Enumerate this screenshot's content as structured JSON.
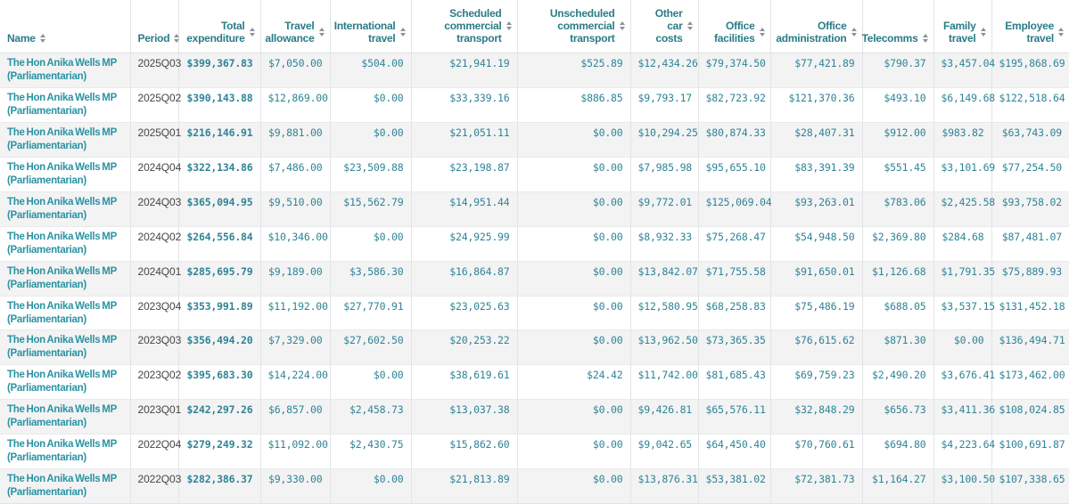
{
  "colors": {
    "header_text": "#2a7c87",
    "name_link_text": "#2a93a3",
    "amount_text": "#2f8496",
    "period_text": "#454545",
    "row_stripe": "#f3f3f4",
    "border": "#e3e4e6",
    "sort_icon": "#8d929a"
  },
  "table": {
    "columns": [
      {
        "id": "name",
        "label": "Name",
        "sortable": true,
        "align": "left"
      },
      {
        "id": "period",
        "label": "Period",
        "sortable": true,
        "align": "left"
      },
      {
        "id": "total-expenditure",
        "label": "Total expenditure",
        "sortable": true,
        "align": "right"
      },
      {
        "id": "travel-allowance",
        "label": "Travel allowance",
        "sortable": true,
        "align": "right"
      },
      {
        "id": "international-travel",
        "label": "International travel",
        "sortable": true,
        "align": "right"
      },
      {
        "id": "scheduled-commercial-transport",
        "label": "Scheduled commercial transport",
        "sortable": true,
        "align": "right"
      },
      {
        "id": "unscheduled-commercial-transport",
        "label": "Unscheduled commercial transport",
        "sortable": true,
        "align": "right"
      },
      {
        "id": "other-car-costs",
        "label": "Other car costs",
        "sortable": true,
        "align": "right"
      },
      {
        "id": "office-facilities",
        "label": "Office facilities",
        "sortable": true,
        "align": "right"
      },
      {
        "id": "office-administration",
        "label": "Office administration",
        "sortable": true,
        "align": "right"
      },
      {
        "id": "telecomms",
        "label": "Telecomms",
        "sortable": true,
        "align": "right"
      },
      {
        "id": "family-travel",
        "label": "Family travel",
        "sortable": true,
        "align": "right"
      },
      {
        "id": "employee-travel",
        "label": "Employee travel",
        "sortable": true,
        "align": "right"
      }
    ],
    "rows": [
      {
        "name": "The Hon Anika Wells MP (Parliamentarian)",
        "period": "2025Q03",
        "values": [
          "$399,367.83",
          "$7,050.00",
          "$504.00",
          "$21,941.19",
          "$525.89",
          "$12,434.26",
          "$79,374.50",
          "$77,421.89",
          "$790.37",
          "$3,457.04",
          "$195,868.69"
        ]
      },
      {
        "name": "The Hon Anika Wells MP (Parliamentarian)",
        "period": "2025Q02",
        "values": [
          "$390,143.88",
          "$12,869.00",
          "$0.00",
          "$33,339.16",
          "$886.85",
          "$9,793.17",
          "$82,723.92",
          "$121,370.36",
          "$493.10",
          "$6,149.68",
          "$122,518.64"
        ]
      },
      {
        "name": "The Hon Anika Wells MP (Parliamentarian)",
        "period": "2025Q01",
        "values": [
          "$216,146.91",
          "$9,881.00",
          "$0.00",
          "$21,051.11",
          "$0.00",
          "$10,294.25",
          "$80,874.33",
          "$28,407.31",
          "$912.00",
          "$983.82",
          "$63,743.09"
        ]
      },
      {
        "name": "The Hon Anika Wells MP (Parliamentarian)",
        "period": "2024Q04",
        "values": [
          "$322,134.86",
          "$7,486.00",
          "$23,509.88",
          "$23,198.87",
          "$0.00",
          "$7,985.98",
          "$95,655.10",
          "$83,391.39",
          "$551.45",
          "$3,101.69",
          "$77,254.50"
        ]
      },
      {
        "name": "The Hon Anika Wells MP (Parliamentarian)",
        "period": "2024Q03",
        "values": [
          "$365,094.95",
          "$9,510.00",
          "$15,562.79",
          "$14,951.44",
          "$0.00",
          "$9,772.01",
          "$125,069.04",
          "$93,263.01",
          "$783.06",
          "$2,425.58",
          "$93,758.02"
        ]
      },
      {
        "name": "The Hon Anika Wells MP (Parliamentarian)",
        "period": "2024Q02",
        "values": [
          "$264,556.84",
          "$10,346.00",
          "$0.00",
          "$24,925.99",
          "$0.00",
          "$8,932.33",
          "$75,268.47",
          "$54,948.50",
          "$2,369.80",
          "$284.68",
          "$87,481.07"
        ]
      },
      {
        "name": "The Hon Anika Wells MP (Parliamentarian)",
        "period": "2024Q01",
        "values": [
          "$285,695.79",
          "$9,189.00",
          "$3,586.30",
          "$16,864.87",
          "$0.00",
          "$13,842.07",
          "$71,755.58",
          "$91,650.01",
          "$1,126.68",
          "$1,791.35",
          "$75,889.93"
        ]
      },
      {
        "name": "The Hon Anika Wells MP (Parliamentarian)",
        "period": "2023Q04",
        "values": [
          "$353,991.89",
          "$11,192.00",
          "$27,770.91",
          "$23,025.63",
          "$0.00",
          "$12,580.95",
          "$68,258.83",
          "$75,486.19",
          "$688.05",
          "$3,537.15",
          "$131,452.18"
        ]
      },
      {
        "name": "The Hon Anika Wells MP (Parliamentarian)",
        "period": "2023Q03",
        "values": [
          "$356,494.20",
          "$7,329.00",
          "$27,602.50",
          "$20,253.22",
          "$0.00",
          "$13,962.50",
          "$73,365.35",
          "$76,615.62",
          "$871.30",
          "$0.00",
          "$136,494.71"
        ]
      },
      {
        "name": "The Hon Anika Wells MP (Parliamentarian)",
        "period": "2023Q02",
        "values": [
          "$395,683.30",
          "$14,224.00",
          "$0.00",
          "$38,619.61",
          "$24.42",
          "$11,742.00",
          "$81,685.43",
          "$69,759.23",
          "$2,490.20",
          "$3,676.41",
          "$173,462.00"
        ]
      },
      {
        "name": "The Hon Anika Wells MP (Parliamentarian)",
        "period": "2023Q01",
        "values": [
          "$242,297.26",
          "$6,857.00",
          "$2,458.73",
          "$13,037.38",
          "$0.00",
          "$9,426.81",
          "$65,576.11",
          "$32,848.29",
          "$656.73",
          "$3,411.36",
          "$108,024.85"
        ]
      },
      {
        "name": "The Hon Anika Wells MP (Parliamentarian)",
        "period": "2022Q04",
        "values": [
          "$279,249.32",
          "$11,092.00",
          "$2,430.75",
          "$15,862.60",
          "$0.00",
          "$9,042.65",
          "$64,450.40",
          "$70,760.61",
          "$694.80",
          "$4,223.64",
          "$100,691.87"
        ]
      },
      {
        "name": "The Hon Anika Wells MP (Parliamentarian)",
        "period": "2022Q03",
        "values": [
          "$282,386.37",
          "$9,330.00",
          "$0.00",
          "$21,813.89",
          "$0.00",
          "$13,876.31",
          "$53,381.02",
          "$72,381.73",
          "$1,164.27",
          "$3,100.50",
          "$107,338.65"
        ]
      }
    ]
  }
}
